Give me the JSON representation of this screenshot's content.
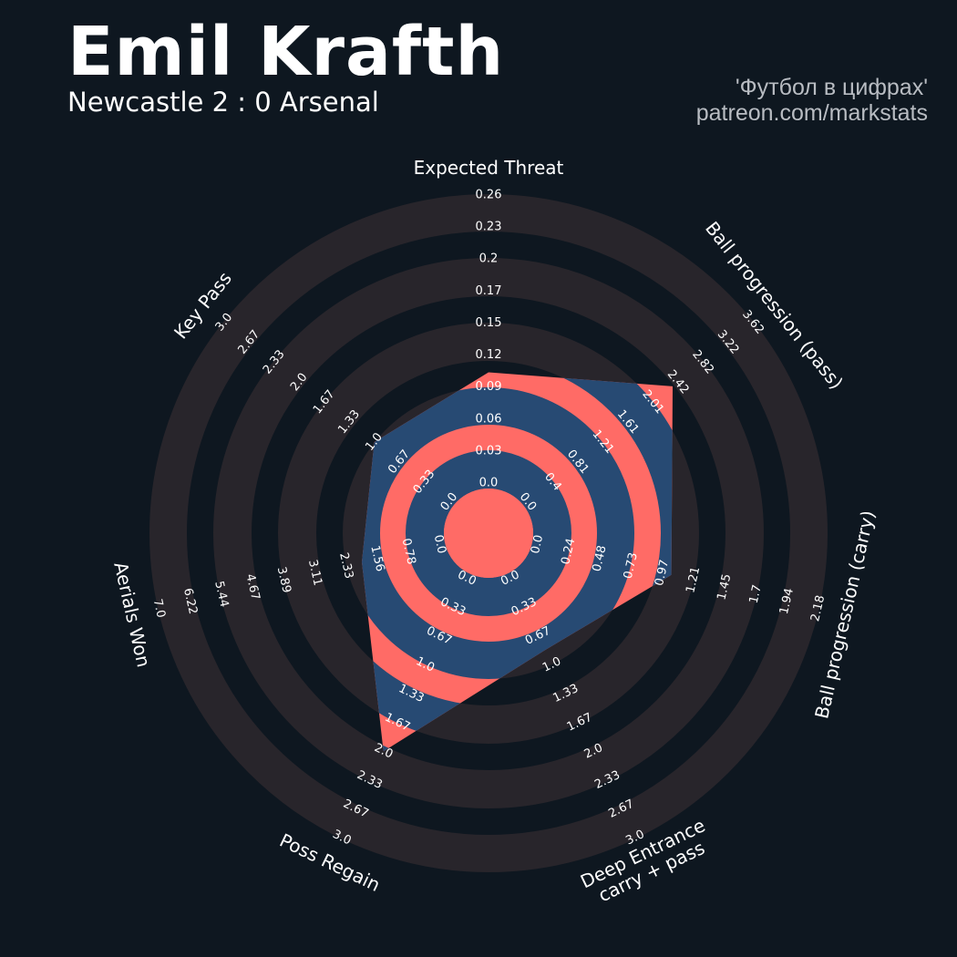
{
  "header": {
    "title": "Emil Krafth",
    "subtitle": "Newcastle 2 : 0 Arsenal",
    "credit_line1": "'Футбол в цифрах'",
    "credit_line2": "patreon.com/markstats"
  },
  "colors": {
    "background": "#0e1720",
    "ring": "#28252b",
    "polygon_ring": "#274a73",
    "polygon_gap": "#ff6b66",
    "text": "#ffffff"
  },
  "chart_data": {
    "type": "radar",
    "params": [
      {
        "label": [
          "Expected Threat"
        ],
        "min": 0.0,
        "max": 0.26,
        "value": 0.1,
        "ticks": [
          "0.0",
          "0.03",
          "0.06",
          "0.09",
          "0.12",
          "0.15",
          "0.17",
          "0.2",
          "0.23",
          "0.26"
        ]
      },
      {
        "label": [
          "Ball progression (pass)"
        ],
        "min": 0.0,
        "max": 3.62,
        "value": 2.33,
        "ticks": [
          "0.0",
          "0.4",
          "0.81",
          "1.21",
          "1.61",
          "2.01",
          "2.42",
          "2.82",
          "3.22",
          "3.62"
        ]
      },
      {
        "label": [
          "Ball progression (carry)"
        ],
        "min": 0.0,
        "max": 2.18,
        "value": 1.04,
        "ticks": [
          "0.0",
          "0.24",
          "0.48",
          "0.73",
          "0.97",
          "1.21",
          "1.45",
          "1.7",
          "1.94",
          "2.18"
        ]
      },
      {
        "label": [
          "Deep Entrance",
          "carry + pass"
        ],
        "min": 0.0,
        "max": 3.0,
        "value": 0.83,
        "ticks": [
          "0.0",
          "0.33",
          "0.67",
          "1.0",
          "1.33",
          "1.67",
          "2.0",
          "2.33",
          "2.67",
          "3.0"
        ]
      },
      {
        "label": [
          "Poss Regain"
        ],
        "min": 0.0,
        "max": 3.0,
        "value": 2.0,
        "ticks": [
          "0.0",
          "0.33",
          "0.67",
          "1.0",
          "1.33",
          "1.67",
          "2.0",
          "2.33",
          "2.67",
          "3.0"
        ]
      },
      {
        "label": [
          "Aerials Won"
        ],
        "min": 0.0,
        "max": 7.0,
        "value": 1.94,
        "ticks": [
          "0.0",
          "0.78",
          "1.56",
          "2.33",
          "3.11",
          "3.89",
          "4.67",
          "5.44",
          "6.22",
          "7.0"
        ]
      },
      {
        "label": [
          "Key Pass"
        ],
        "min": 0.0,
        "max": 3.0,
        "value": 1.0,
        "ticks": [
          "0.0",
          "0.33",
          "0.67",
          "1.0",
          "1.33",
          "1.67",
          "2.0",
          "2.33",
          "2.67",
          "3.0"
        ]
      }
    ]
  }
}
